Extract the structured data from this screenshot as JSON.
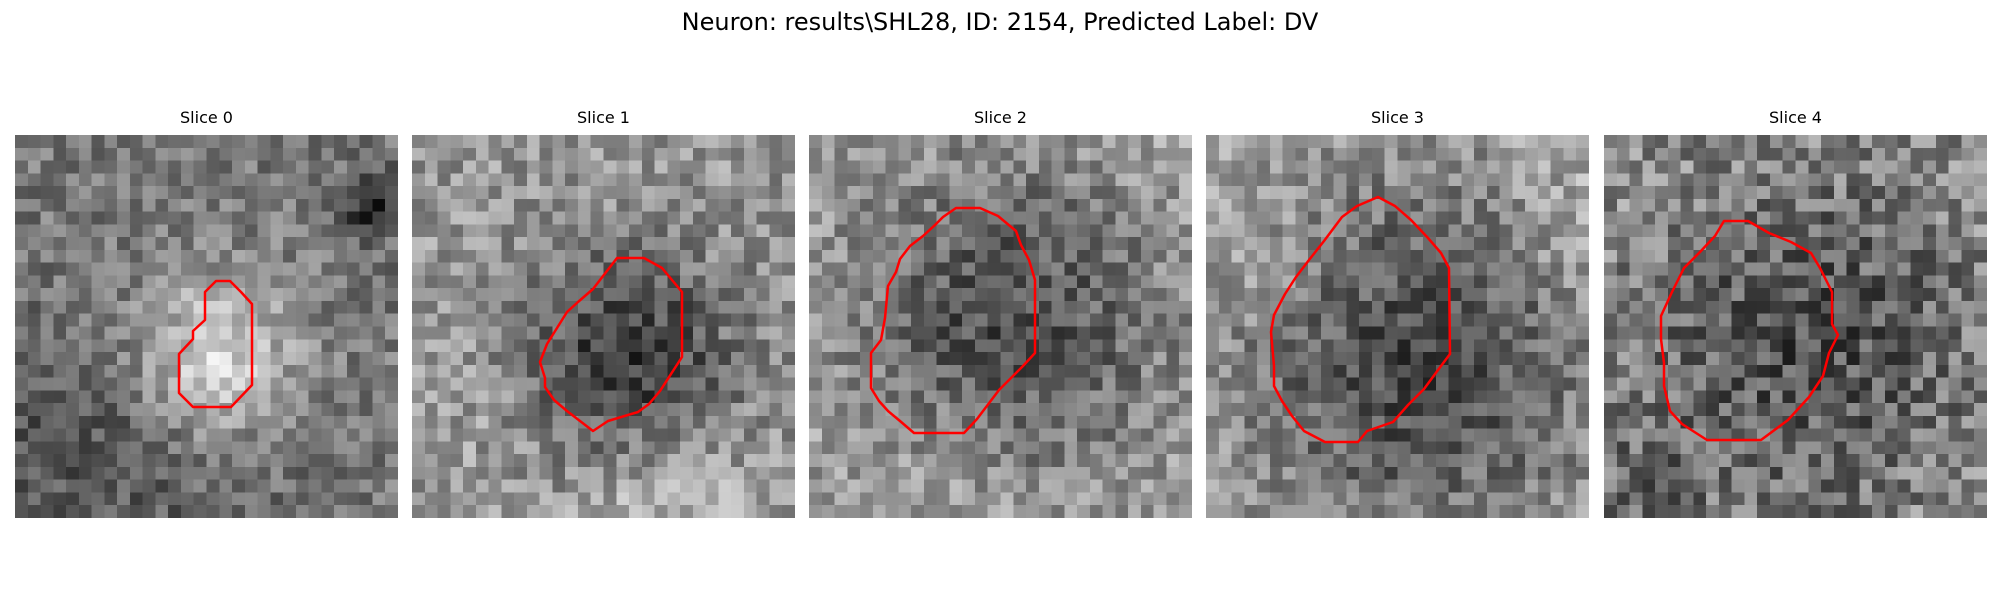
{
  "figure": {
    "title": "Neuron: results\\SHL28, ID: 2154, Predicted Label: DV"
  },
  "colors": {
    "contour": "#ff0000",
    "background": "#ffffff"
  },
  "slices": [
    {
      "label": "Slice 0"
    },
    {
      "label": "Slice 1"
    },
    {
      "label": "Slice 2"
    },
    {
      "label": "Slice 3"
    },
    {
      "label": "Slice 4"
    }
  ]
}
